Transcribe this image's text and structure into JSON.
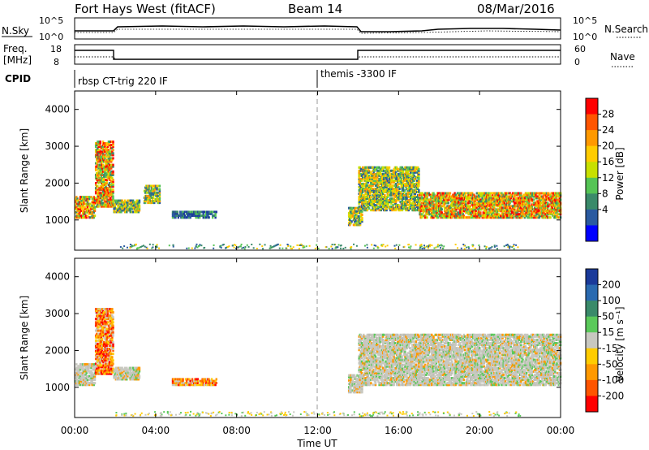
{
  "header": {
    "title": "Fort Hays West (fitACF)",
    "beam": "Beam 14",
    "date": "08/Mar/2016"
  },
  "noise_panel": {
    "left_label": "N.Sky",
    "right_label": "N.Search",
    "tick_top": "10^5",
    "tick_bottom": "10^0"
  },
  "freq_panel": {
    "left_label_1": "Freq.",
    "left_label_2": "[MHz]",
    "left_ticks": [
      "18",
      "8"
    ],
    "right_ticks": [
      "60",
      "0"
    ],
    "right_label": "Nave"
  },
  "cpid_panel": {
    "label": "CPID",
    "modes": [
      "rbsp CT-trig 220 IF",
      "themis -3300 IF"
    ]
  },
  "chart_data": [
    {
      "type": "heatmap",
      "panel": "power",
      "ylabel": "Slant Range [km]",
      "yticks": [
        "1000",
        "2000",
        "3000",
        "4000"
      ],
      "ylim": [
        180,
        4500
      ],
      "colorbar_label": "Power [dB]",
      "colorbar_ticks": [
        "28",
        "24",
        "20",
        "16",
        "12",
        "8",
        "4"
      ],
      "colorbar_colors": [
        "#ff0000",
        "#ff5500",
        "#ff9900",
        "#ffcc00",
        "#c8e000",
        "#55c455",
        "#3a8a6a",
        "#2a5aa0",
        "#0000ff"
      ],
      "bands": [
        {
          "t0": 0.0,
          "t1": 1.0,
          "r0": 1100,
          "r1": 1700,
          "level": "high"
        },
        {
          "t0": 1.0,
          "t1": 1.9,
          "r0": 1400,
          "r1": 3200,
          "level": "high"
        },
        {
          "t0": 1.9,
          "t1": 3.2,
          "r0": 1250,
          "r1": 1600,
          "level": "mid"
        },
        {
          "t0": 3.4,
          "t1": 4.2,
          "r0": 1500,
          "r1": 2000,
          "level": "mid"
        },
        {
          "t0": 4.8,
          "t1": 7.0,
          "r0": 1100,
          "r1": 1300,
          "level": "low"
        },
        {
          "t0": 13.5,
          "t1": 14.2,
          "r0": 900,
          "r1": 1400,
          "level": "mid"
        },
        {
          "t0": 14.0,
          "t1": 17.0,
          "r0": 1300,
          "r1": 2500,
          "level": "mid"
        },
        {
          "t0": 17.0,
          "t1": 24.0,
          "r0": 1100,
          "r1": 1800,
          "level": "high"
        }
      ]
    },
    {
      "type": "heatmap",
      "panel": "velocity",
      "ylabel": "Slant Range [km]",
      "xlabel": "Time UT",
      "xticks": [
        "00:00",
        "04:00",
        "08:00",
        "12:00",
        "16:00",
        "20:00",
        "00:00"
      ],
      "xlim": [
        0,
        24
      ],
      "yticks": [
        "1000",
        "2000",
        "3000",
        "4000"
      ],
      "ylim": [
        180,
        4500
      ],
      "colorbar_label": "Velocity [m s⁻¹]",
      "colorbar_ticks": [
        "200",
        "100",
        "50",
        "15",
        "-15",
        "-50",
        "-100",
        "-200"
      ],
      "colorbar_colors": [
        "#1a3a9a",
        "#2a6ab0",
        "#3a8a6a",
        "#5ac95a",
        "#c8c8c0",
        "#ffcc00",
        "#ff9900",
        "#ff5500",
        "#ff0000"
      ],
      "bands": [
        {
          "t0": 0.0,
          "t1": 1.0,
          "r0": 1100,
          "r1": 1700,
          "level": "ground"
        },
        {
          "t0": 1.0,
          "t1": 1.9,
          "r0": 1400,
          "r1": 3200,
          "level": "negative"
        },
        {
          "t0": 1.9,
          "t1": 3.2,
          "r0": 1250,
          "r1": 1600,
          "level": "ground"
        },
        {
          "t0": 4.8,
          "t1": 7.0,
          "r0": 1100,
          "r1": 1300,
          "level": "negative"
        },
        {
          "t0": 13.5,
          "t1": 14.2,
          "r0": 900,
          "r1": 1400,
          "level": "ground"
        },
        {
          "t0": 14.0,
          "t1": 24.0,
          "r0": 1100,
          "r1": 2500,
          "level": "ground"
        }
      ]
    }
  ]
}
